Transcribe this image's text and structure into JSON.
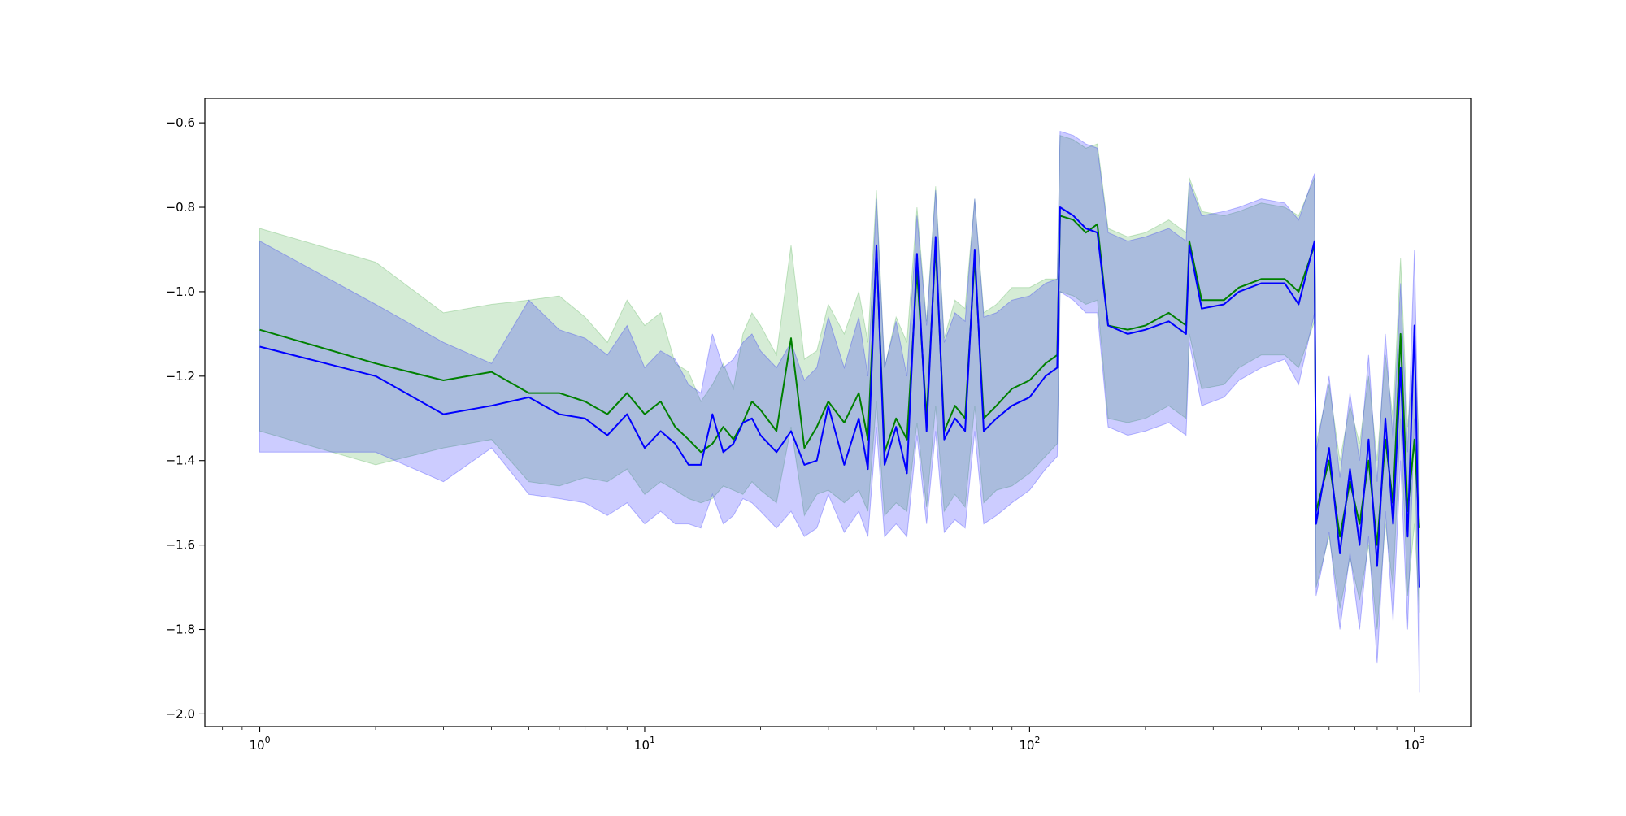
{
  "chart_data": {
    "type": "line",
    "title": "",
    "xlabel": "",
    "ylabel": "",
    "xscale": "log",
    "xlim": [
      0.72,
      1400
    ],
    "ylim": [
      -2.03,
      -0.542
    ],
    "grid": false,
    "legend": "none",
    "x_ticks": [
      {
        "value": 1,
        "base": "10",
        "exp": "0"
      },
      {
        "value": 10,
        "base": "10",
        "exp": "1"
      },
      {
        "value": 100,
        "base": "10",
        "exp": "2"
      },
      {
        "value": 1000,
        "base": "10",
        "exp": "3"
      }
    ],
    "y_ticks": [
      {
        "value": -0.6,
        "label": "−0.6"
      },
      {
        "value": -0.8,
        "label": "−0.8"
      },
      {
        "value": -1.0,
        "label": "−1.0"
      },
      {
        "value": -1.2,
        "label": "−1.2"
      },
      {
        "value": -1.4,
        "label": "−1.4"
      },
      {
        "value": -1.6,
        "label": "−1.6"
      },
      {
        "value": -1.8,
        "label": "−1.8"
      },
      {
        "value": -2.0,
        "label": "−2.0"
      }
    ],
    "series": [
      {
        "color": "#008000",
        "band_color": "#2ca02c",
        "points": [
          [
            1,
            -1.09,
            -0.85,
            -1.33
          ],
          [
            2,
            -1.17,
            -0.93,
            -1.41
          ],
          [
            3,
            -1.21,
            -1.05,
            -1.37
          ],
          [
            4,
            -1.19,
            -1.03,
            -1.35
          ],
          [
            5,
            -1.24,
            -1.02,
            -1.45
          ],
          [
            6,
            -1.24,
            -1.01,
            -1.46
          ],
          [
            7,
            -1.26,
            -1.06,
            -1.44
          ],
          [
            8,
            -1.29,
            -1.12,
            -1.45
          ],
          [
            9,
            -1.24,
            -1.02,
            -1.42
          ],
          [
            10,
            -1.29,
            -1.08,
            -1.48
          ],
          [
            11,
            -1.26,
            -1.05,
            -1.45
          ],
          [
            12,
            -1.32,
            -1.17,
            -1.47
          ],
          [
            13,
            -1.35,
            -1.19,
            -1.49
          ],
          [
            14,
            -1.38,
            -1.26,
            -1.5
          ],
          [
            15,
            -1.36,
            -1.22,
            -1.49
          ],
          [
            16,
            -1.32,
            -1.17,
            -1.46
          ],
          [
            17,
            -1.35,
            -1.23,
            -1.47
          ],
          [
            18,
            -1.31,
            -1.1,
            -1.48
          ],
          [
            19,
            -1.26,
            -1.05,
            -1.45
          ],
          [
            20,
            -1.28,
            -1.08,
            -1.47
          ],
          [
            22,
            -1.33,
            -1.15,
            -1.5
          ],
          [
            24,
            -1.11,
            -0.89,
            -1.32
          ],
          [
            26,
            -1.37,
            -1.16,
            -1.53
          ],
          [
            28,
            -1.32,
            -1.14,
            -1.48
          ],
          [
            30,
            -1.26,
            -1.03,
            -1.47
          ],
          [
            33,
            -1.31,
            -1.1,
            -1.5
          ],
          [
            36,
            -1.24,
            -1.0,
            -1.47
          ],
          [
            38,
            -1.35,
            -1.12,
            -1.52
          ],
          [
            40,
            -0.9,
            -0.76,
            -1.26
          ],
          [
            42,
            -1.38,
            -1.18,
            -1.53
          ],
          [
            45,
            -1.3,
            -1.06,
            -1.5
          ],
          [
            48,
            -1.35,
            -1.12,
            -1.52
          ],
          [
            51,
            -0.95,
            -0.8,
            -1.31
          ],
          [
            54,
            -1.3,
            -1.07,
            -1.51
          ],
          [
            57,
            -0.89,
            -0.75,
            -1.27
          ],
          [
            60,
            -1.33,
            -1.11,
            -1.52
          ],
          [
            64,
            -1.27,
            -1.02,
            -1.48
          ],
          [
            68,
            -1.3,
            -1.04,
            -1.51
          ],
          [
            72,
            -0.92,
            -0.78,
            -1.27
          ],
          [
            76,
            -1.3,
            -1.05,
            -1.5
          ],
          [
            82,
            -1.27,
            -1.03,
            -1.47
          ],
          [
            90,
            -1.23,
            -0.99,
            -1.46
          ],
          [
            100,
            -1.21,
            -0.99,
            -1.43
          ],
          [
            110,
            -1.17,
            -0.97,
            -1.39
          ],
          [
            118,
            -1.15,
            -0.97,
            -1.36
          ],
          [
            120,
            -0.82,
            -0.63,
            -1.0
          ],
          [
            130,
            -0.83,
            -0.64,
            -1.01
          ],
          [
            140,
            -0.86,
            -0.66,
            -1.03
          ],
          [
            150,
            -0.84,
            -0.65,
            -1.02
          ],
          [
            160,
            -1.08,
            -0.85,
            -1.3
          ],
          [
            180,
            -1.09,
            -0.87,
            -1.31
          ],
          [
            200,
            -1.08,
            -0.86,
            -1.3
          ],
          [
            230,
            -1.05,
            -0.83,
            -1.27
          ],
          [
            255,
            -1.08,
            -0.86,
            -1.3
          ],
          [
            260,
            -0.88,
            -0.73,
            -1.1
          ],
          [
            280,
            -1.02,
            -0.81,
            -1.23
          ],
          [
            320,
            -1.02,
            -0.82,
            -1.22
          ],
          [
            350,
            -0.99,
            -0.81,
            -1.18
          ],
          [
            400,
            -0.97,
            -0.79,
            -1.15
          ],
          [
            460,
            -0.97,
            -0.8,
            -1.15
          ],
          [
            500,
            -1.0,
            -0.82,
            -1.18
          ],
          [
            550,
            -0.89,
            -0.73,
            -1.07
          ],
          [
            555,
            -1.52,
            -1.36,
            -1.7
          ],
          [
            600,
            -1.4,
            -1.22,
            -1.58
          ],
          [
            640,
            -1.58,
            -1.4,
            -1.75
          ],
          [
            680,
            -1.45,
            -1.27,
            -1.63
          ],
          [
            720,
            -1.55,
            -1.36,
            -1.73
          ],
          [
            760,
            -1.4,
            -1.2,
            -1.6
          ],
          [
            800,
            -1.6,
            -1.4,
            -1.8
          ],
          [
            840,
            -1.35,
            -1.15,
            -1.55
          ],
          [
            880,
            -1.5,
            -1.3,
            -1.7
          ],
          [
            920,
            -1.1,
            -0.92,
            -1.3
          ],
          [
            960,
            -1.52,
            -1.32,
            -1.72
          ],
          [
            1000,
            -1.35,
            -1.15,
            -1.55
          ],
          [
            1030,
            -1.56,
            -1.36,
            -1.76
          ]
        ]
      },
      {
        "color": "#0000ff",
        "band_color": "#0000ff",
        "points": [
          [
            1,
            -1.13,
            -0.88,
            -1.38
          ],
          [
            2,
            -1.2,
            -1.03,
            -1.38
          ],
          [
            3,
            -1.29,
            -1.12,
            -1.45
          ],
          [
            4,
            -1.27,
            -1.17,
            -1.37
          ],
          [
            5,
            -1.25,
            -1.02,
            -1.48
          ],
          [
            6,
            -1.29,
            -1.09,
            -1.49
          ],
          [
            7,
            -1.3,
            -1.11,
            -1.5
          ],
          [
            8,
            -1.34,
            -1.15,
            -1.53
          ],
          [
            9,
            -1.29,
            -1.08,
            -1.5
          ],
          [
            10,
            -1.37,
            -1.18,
            -1.55
          ],
          [
            11,
            -1.33,
            -1.14,
            -1.52
          ],
          [
            12,
            -1.36,
            -1.16,
            -1.55
          ],
          [
            13,
            -1.41,
            -1.22,
            -1.55
          ],
          [
            14,
            -1.41,
            -1.24,
            -1.56
          ],
          [
            15,
            -1.29,
            -1.1,
            -1.48
          ],
          [
            16,
            -1.38,
            -1.18,
            -1.55
          ],
          [
            17,
            -1.36,
            -1.16,
            -1.53
          ],
          [
            18,
            -1.31,
            -1.12,
            -1.49
          ],
          [
            19,
            -1.3,
            -1.1,
            -1.5
          ],
          [
            20,
            -1.34,
            -1.14,
            -1.52
          ],
          [
            22,
            -1.38,
            -1.18,
            -1.56
          ],
          [
            24,
            -1.33,
            -1.12,
            -1.52
          ],
          [
            26,
            -1.41,
            -1.21,
            -1.58
          ],
          [
            28,
            -1.4,
            -1.18,
            -1.56
          ],
          [
            30,
            -1.27,
            -1.06,
            -1.48
          ],
          [
            33,
            -1.41,
            -1.18,
            -1.57
          ],
          [
            36,
            -1.3,
            -1.06,
            -1.52
          ],
          [
            38,
            -1.42,
            -1.2,
            -1.58
          ],
          [
            40,
            -0.89,
            -0.78,
            -1.32
          ],
          [
            42,
            -1.41,
            -1.18,
            -1.58
          ],
          [
            45,
            -1.32,
            -1.07,
            -1.55
          ],
          [
            48,
            -1.43,
            -1.2,
            -1.58
          ],
          [
            51,
            -0.91,
            -0.82,
            -1.34
          ],
          [
            54,
            -1.33,
            -1.08,
            -1.55
          ],
          [
            57,
            -0.87,
            -0.76,
            -1.33
          ],
          [
            60,
            -1.35,
            -1.12,
            -1.57
          ],
          [
            64,
            -1.3,
            -1.05,
            -1.54
          ],
          [
            68,
            -1.33,
            -1.07,
            -1.56
          ],
          [
            72,
            -0.9,
            -0.78,
            -1.33
          ],
          [
            76,
            -1.33,
            -1.06,
            -1.55
          ],
          [
            82,
            -1.3,
            -1.05,
            -1.53
          ],
          [
            90,
            -1.27,
            -1.02,
            -1.5
          ],
          [
            100,
            -1.25,
            -1.01,
            -1.47
          ],
          [
            110,
            -1.2,
            -0.98,
            -1.42
          ],
          [
            118,
            -1.18,
            -0.97,
            -1.39
          ],
          [
            120,
            -0.8,
            -0.62,
            -1.0
          ],
          [
            130,
            -0.82,
            -0.63,
            -1.02
          ],
          [
            140,
            -0.85,
            -0.65,
            -1.05
          ],
          [
            150,
            -0.86,
            -0.66,
            -1.05
          ],
          [
            160,
            -1.08,
            -0.86,
            -1.32
          ],
          [
            180,
            -1.1,
            -0.88,
            -1.34
          ],
          [
            200,
            -1.09,
            -0.87,
            -1.33
          ],
          [
            230,
            -1.07,
            -0.85,
            -1.31
          ],
          [
            255,
            -1.1,
            -0.88,
            -1.34
          ],
          [
            260,
            -0.89,
            -0.74,
            -1.12
          ],
          [
            280,
            -1.04,
            -0.82,
            -1.27
          ],
          [
            320,
            -1.03,
            -0.81,
            -1.25
          ],
          [
            350,
            -1.0,
            -0.8,
            -1.21
          ],
          [
            400,
            -0.98,
            -0.78,
            -1.18
          ],
          [
            460,
            -0.98,
            -0.79,
            -1.16
          ],
          [
            500,
            -1.03,
            -0.83,
            -1.22
          ],
          [
            550,
            -0.88,
            -0.72,
            -1.05
          ],
          [
            555,
            -1.55,
            -1.38,
            -1.72
          ],
          [
            600,
            -1.37,
            -1.2,
            -1.57
          ],
          [
            640,
            -1.62,
            -1.44,
            -1.8
          ],
          [
            680,
            -1.42,
            -1.24,
            -1.62
          ],
          [
            720,
            -1.6,
            -1.4,
            -1.8
          ],
          [
            760,
            -1.35,
            -1.15,
            -1.58
          ],
          [
            800,
            -1.65,
            -1.45,
            -1.88
          ],
          [
            840,
            -1.3,
            -1.1,
            -1.52
          ],
          [
            880,
            -1.55,
            -1.35,
            -1.78
          ],
          [
            920,
            -1.18,
            -0.98,
            -1.4
          ],
          [
            960,
            -1.58,
            -1.38,
            -1.8
          ],
          [
            1000,
            -1.08,
            -0.9,
            -1.3
          ],
          [
            1030,
            -1.7,
            -1.5,
            -1.95
          ]
        ]
      }
    ]
  }
}
